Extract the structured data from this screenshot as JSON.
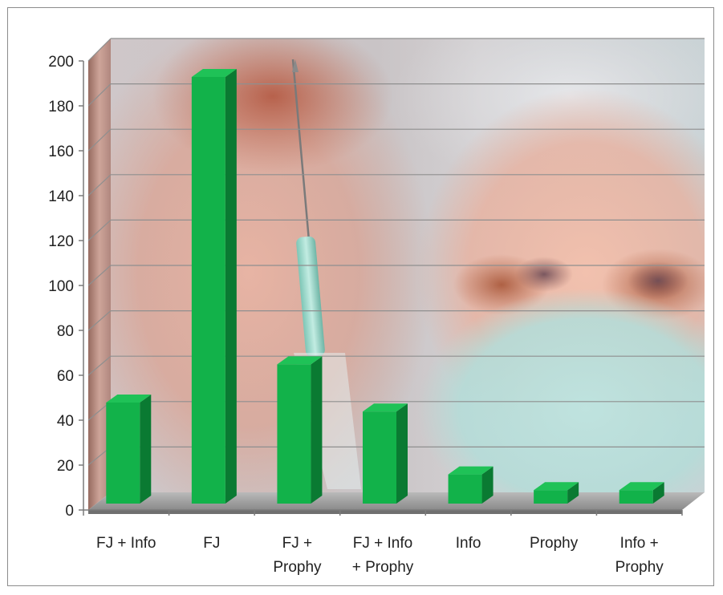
{
  "chart_data": {
    "type": "bar",
    "title": "",
    "xlabel": "",
    "ylabel": "",
    "categories": [
      [
        "FJ + Info"
      ],
      [
        "FJ"
      ],
      [
        "FJ +",
        "Prophy"
      ],
      [
        "FJ + Info",
        "+ Prophy"
      ],
      [
        "Info"
      ],
      [
        "Prophy"
      ],
      [
        "Info +",
        "Prophy"
      ]
    ],
    "values": [
      45,
      190,
      62,
      41,
      13,
      6,
      6
    ],
    "ylim": [
      0,
      200
    ],
    "yticks": [
      0,
      20,
      40,
      60,
      80,
      100,
      120,
      140,
      160,
      180,
      200
    ],
    "grid": true,
    "legend": "none",
    "style": "3d-column with photographic backdrop (syringe and masked face)",
    "colors": {
      "bar_front": "#12b24a",
      "bar_side": "#0a7a32",
      "bar_top": "#1fc257",
      "grid": "#8f8f8f",
      "floor": "#9a9a9a"
    }
  }
}
